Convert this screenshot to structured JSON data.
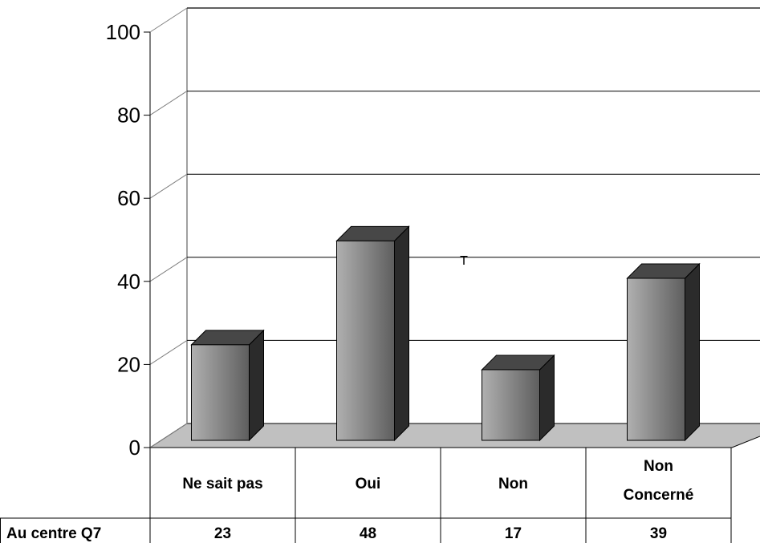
{
  "chart_data": {
    "type": "bar",
    "categories": [
      "Ne sait pas",
      "Oui",
      "Non",
      "Non Concerné"
    ],
    "category_lines": [
      [
        "Ne sait pas"
      ],
      [
        "Oui"
      ],
      [
        "Non"
      ],
      [
        "Non",
        "Concerné"
      ]
    ],
    "series": [
      {
        "name": "Au centre Q7",
        "values": [
          23,
          48,
          17,
          39
        ]
      }
    ],
    "table_values": [
      "23",
      "48",
      "17",
      "39"
    ],
    "yticks": [
      "0",
      "20",
      "40",
      "60",
      "80",
      "100"
    ],
    "ylim": [
      0,
      100
    ],
    "grid": true,
    "style": "3d-bar",
    "annotation": "T",
    "colors": {
      "bar_front_light": "#b0b0b0",
      "bar_front_dark": "#5e5e5e",
      "bar_side": "#2b2b2b",
      "bar_top": "#474747",
      "floor": "#c0c0c0",
      "gridline": "#000000"
    }
  }
}
